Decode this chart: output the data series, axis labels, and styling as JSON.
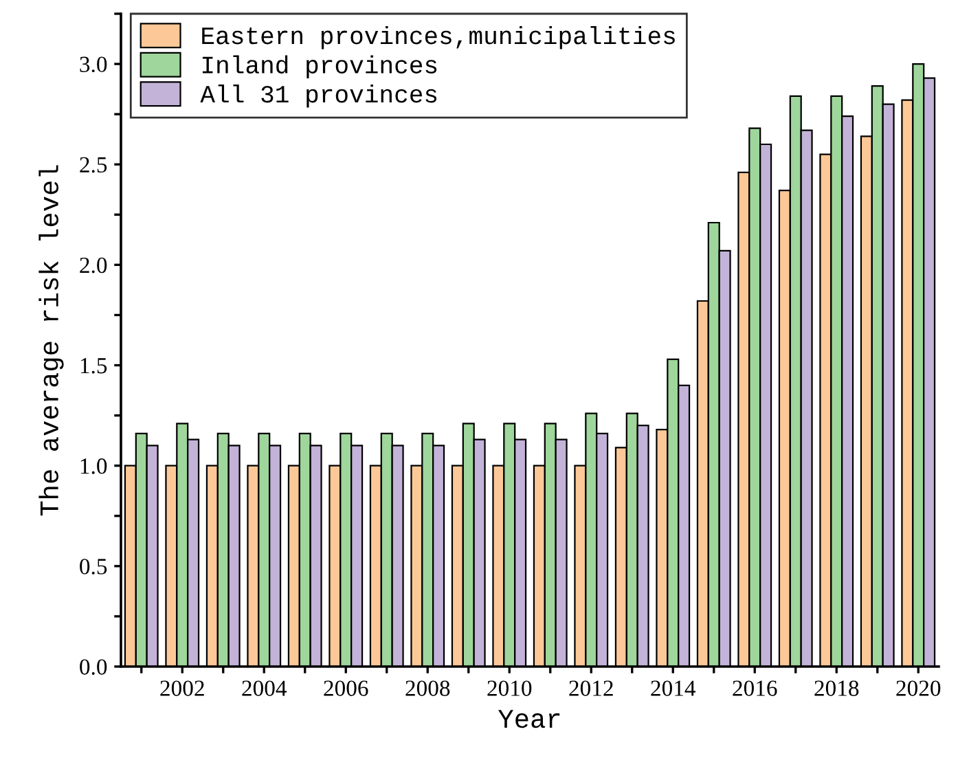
{
  "chart_data": {
    "type": "bar",
    "xlabel": "Year",
    "ylabel": "The average risk level",
    "categories": [
      null,
      "2002",
      null,
      "2004",
      null,
      "2006",
      null,
      "2008",
      null,
      "2010",
      null,
      "2012",
      null,
      "2014",
      null,
      "2016",
      null,
      "2018",
      null,
      "2020"
    ],
    "series": [
      {
        "name": "Eastern provinces,municipalities",
        "color": "#fdc897",
        "values": [
          1.0,
          1.0,
          1.0,
          1.0,
          1.0,
          1.0,
          1.0,
          1.0,
          1.0,
          1.0,
          1.0,
          1.0,
          1.09,
          1.18,
          1.82,
          2.46,
          2.37,
          2.55,
          2.64,
          2.82
        ]
      },
      {
        "name": "Inland provinces",
        "color": "#9ed69b",
        "values": [
          1.16,
          1.21,
          1.16,
          1.16,
          1.16,
          1.16,
          1.16,
          1.16,
          1.21,
          1.21,
          1.21,
          1.26,
          1.26,
          1.53,
          2.21,
          2.68,
          2.84,
          2.84,
          2.89,
          3.0
        ]
      },
      {
        "name": "All 31 provinces",
        "color": "#c3b3d8",
        "values": [
          1.1,
          1.13,
          1.1,
          1.1,
          1.1,
          1.1,
          1.1,
          1.1,
          1.13,
          1.13,
          1.13,
          1.16,
          1.2,
          1.4,
          2.07,
          2.6,
          2.67,
          2.74,
          2.8,
          2.93
        ]
      }
    ],
    "ylim": [
      0,
      3.25
    ],
    "yticks": [
      {
        "value": 0,
        "label": "0.0"
      },
      {
        "value": 0.25,
        "label": null
      },
      {
        "value": 0.5,
        "label": "0.5"
      },
      {
        "value": 0.75,
        "label": null
      },
      {
        "value": 1,
        "label": "1.0"
      },
      {
        "value": 1.25,
        "label": null
      },
      {
        "value": 1.5,
        "label": "1.5"
      },
      {
        "value": 1.75,
        "label": null
      },
      {
        "value": 2,
        "label": "2.0"
      },
      {
        "value": 2.25,
        "label": null
      },
      {
        "value": 2.5,
        "label": "2.5"
      },
      {
        "value": 2.75,
        "label": null
      },
      {
        "value": 3,
        "label": "3.0"
      },
      {
        "value": 3.25,
        "label": null
      }
    ],
    "grid": false,
    "legend": "top left"
  }
}
